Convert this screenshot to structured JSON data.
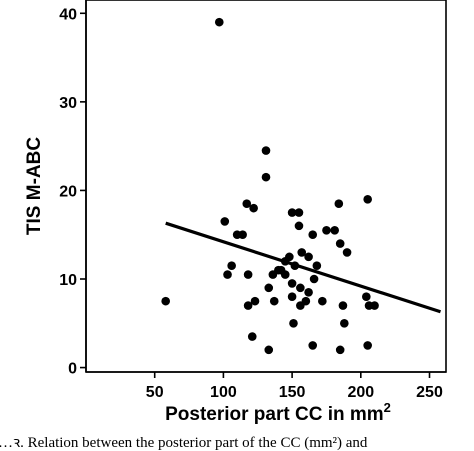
{
  "chart_data": {
    "type": "scatter",
    "title": "",
    "xlabel": "Posterior part CC in mm",
    "xlabel_superscript": "2",
    "ylabel": "TIS M-ABC",
    "xlim": [
      0,
      262
    ],
    "ylim": [
      -0.5,
      41.5
    ],
    "xticks": [
      50,
      100,
      150,
      200,
      250
    ],
    "yticks": [
      0,
      10,
      20,
      30,
      40
    ],
    "grid": false,
    "legend": "none",
    "point_color": "#000000",
    "points": [
      [
        97,
        39
      ],
      [
        58,
        7.5
      ],
      [
        131,
        24.5
      ],
      [
        131,
        21.5
      ],
      [
        205,
        19
      ],
      [
        184,
        18.5
      ],
      [
        117,
        18.5
      ],
      [
        122,
        18
      ],
      [
        150,
        17.5
      ],
      [
        155,
        17.5
      ],
      [
        101,
        16.5
      ],
      [
        155,
        16
      ],
      [
        175,
        15.5
      ],
      [
        181,
        15.5
      ],
      [
        110,
        15
      ],
      [
        114,
        15
      ],
      [
        165,
        15
      ],
      [
        185,
        14
      ],
      [
        190,
        13
      ],
      [
        157,
        13
      ],
      [
        148,
        12.5
      ],
      [
        162,
        12.5
      ],
      [
        145,
        12
      ],
      [
        152,
        11.5
      ],
      [
        106,
        11.5
      ],
      [
        168,
        11.5
      ],
      [
        140,
        11
      ],
      [
        142,
        11
      ],
      [
        145,
        10.5
      ],
      [
        103,
        10.5
      ],
      [
        118,
        10.5
      ],
      [
        136,
        10.5
      ],
      [
        166,
        10
      ],
      [
        150,
        9.5
      ],
      [
        133,
        9
      ],
      [
        156,
        9
      ],
      [
        162,
        8.5
      ],
      [
        204,
        8
      ],
      [
        123,
        7.5
      ],
      [
        137,
        7.5
      ],
      [
        150,
        8
      ],
      [
        172,
        7.5
      ],
      [
        160,
        7.5
      ],
      [
        118,
        7
      ],
      [
        156,
        7
      ],
      [
        187,
        7
      ],
      [
        206,
        7
      ],
      [
        210,
        7
      ],
      [
        151,
        5
      ],
      [
        188,
        5
      ],
      [
        121,
        3.5
      ],
      [
        165,
        2.5
      ],
      [
        133,
        2
      ],
      [
        185,
        2
      ],
      [
        205,
        2.5
      ]
    ],
    "regression_line": [
      [
        58,
        16.3
      ],
      [
        258,
        6.3
      ]
    ]
  },
  "caption": {
    "text": "…ꝛ. Relation between the posterior part of the CC (mm²) and"
  }
}
